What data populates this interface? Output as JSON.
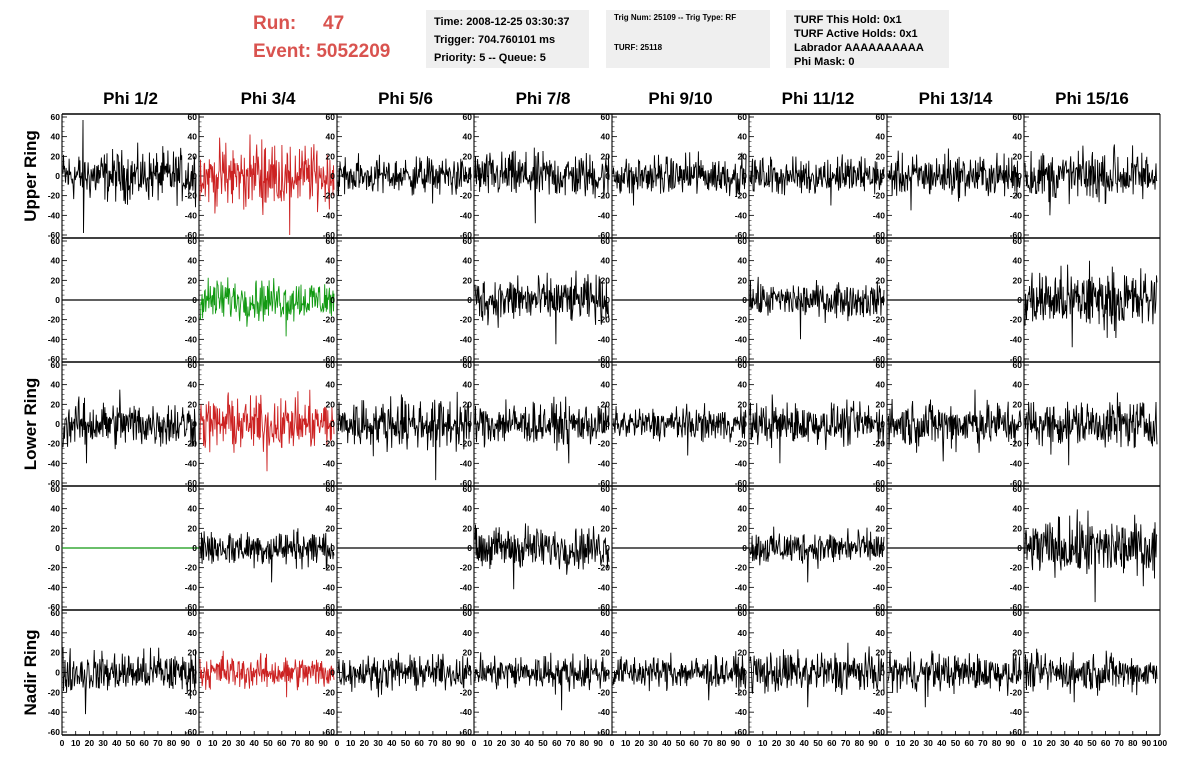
{
  "header": {
    "run_label": "Run:",
    "run_value": "47",
    "event_label": "Event:",
    "event_value": "5052209",
    "time_line": "Time: 2008-12-25 03:30:37",
    "trigger_line": "Trigger: 704.760101 ms",
    "priority_line": "Priority: 5 -- Queue: 5",
    "trig_line": "Trig Num: 25109 -- Trig Type: RF",
    "turf_line": "TURF: 25118",
    "turf_hold_line": "TURF This Hold: 0x1",
    "turf_active_line": "TURF Active Holds: 0x1",
    "labrador_line": "Labrador AAAAAAAAAA",
    "phi_mask_line": "Phi Mask: 0"
  },
  "colors": {
    "trace_default": "#000000",
    "trace_red": "#cc2222",
    "trace_green": "#119911",
    "run_text": "#d9534f",
    "info_bg": "#efefef"
  },
  "chart_data": {
    "type": "line",
    "columns": [
      "Phi 1/2",
      "Phi 3/4",
      "Phi 5/6",
      "Phi 7/8",
      "Phi 9/10",
      "Phi 11/12",
      "Phi 13/14",
      "Phi 15/16"
    ],
    "rows": [
      "Upper Ring",
      "",
      "Lower Ring",
      "",
      "Nadir Ring"
    ],
    "ylim": [
      -60,
      60
    ],
    "xlim": [
      0,
      100
    ],
    "y_ticks": [
      "60",
      "40",
      "20",
      "0",
      "-20",
      "-40",
      "-60"
    ],
    "x_tick_labels": [
      "0",
      "10",
      "20",
      "30",
      "40",
      "50",
      "60",
      "70",
      "80",
      "90",
      "100"
    ],
    "traces": [
      [
        {
          "color": "black",
          "amp": 22,
          "max": 57,
          "min": -58
        },
        {
          "color": "red",
          "amp": 28,
          "max": 32,
          "min": -60
        },
        {
          "color": "black",
          "amp": 16,
          "max": 20,
          "min": -28
        },
        {
          "color": "black",
          "amp": 20,
          "max": 22,
          "min": -48
        },
        {
          "color": "black",
          "amp": 17,
          "max": 25,
          "min": -30
        },
        {
          "color": "black",
          "amp": 16,
          "max": 22,
          "min": -30
        },
        {
          "color": "black",
          "amp": 18,
          "max": 28,
          "min": -35
        },
        {
          "color": "black",
          "amp": 22,
          "max": 32,
          "min": -40
        }
      ],
      [
        {
          "color": "flat",
          "amp": 0,
          "max": 0,
          "min": 0
        },
        {
          "color": "green",
          "amp": 18,
          "max": 23,
          "min": -37
        },
        {
          "color": "flat",
          "amp": 0,
          "max": 0,
          "min": 0
        },
        {
          "color": "black",
          "amp": 20,
          "max": 25,
          "min": -45
        },
        {
          "color": "flat",
          "amp": 0,
          "max": 0,
          "min": 0
        },
        {
          "color": "black",
          "amp": 15,
          "max": 18,
          "min": -40
        },
        {
          "color": "flat",
          "amp": 0,
          "max": 0,
          "min": 0
        },
        {
          "color": "black",
          "amp": 26,
          "max": 40,
          "min": -48
        }
      ],
      [
        {
          "color": "black",
          "amp": 20,
          "max": 35,
          "min": -40
        },
        {
          "color": "red",
          "amp": 22,
          "max": 32,
          "min": -48
        },
        {
          "color": "black",
          "amp": 22,
          "max": 30,
          "min": -57
        },
        {
          "color": "black",
          "amp": 18,
          "max": 25,
          "min": -40
        },
        {
          "color": "black",
          "amp": 14,
          "max": 18,
          "min": -32
        },
        {
          "color": "black",
          "amp": 18,
          "max": 30,
          "min": -40
        },
        {
          "color": "black",
          "amp": 20,
          "max": 35,
          "min": -38
        },
        {
          "color": "black",
          "amp": 20,
          "max": 32,
          "min": -42
        }
      ],
      [
        {
          "color": "greenflat",
          "amp": 0,
          "max": 0,
          "min": 0
        },
        {
          "color": "black",
          "amp": 16,
          "max": 20,
          "min": -35
        },
        {
          "color": "flat",
          "amp": 0,
          "max": 0,
          "min": 0
        },
        {
          "color": "black",
          "amp": 18,
          "max": 25,
          "min": -42
        },
        {
          "color": "flat",
          "amp": 0,
          "max": 0,
          "min": 0
        },
        {
          "color": "black",
          "amp": 15,
          "max": 20,
          "min": -35
        },
        {
          "color": "flat",
          "amp": 0,
          "max": 0,
          "min": 0
        },
        {
          "color": "black",
          "amp": 25,
          "max": 38,
          "min": -55
        }
      ],
      [
        {
          "color": "black",
          "amp": 18,
          "max": 25,
          "min": -42
        },
        {
          "color": "red",
          "amp": 14,
          "max": 22,
          "min": -25
        },
        {
          "color": "black",
          "amp": 14,
          "max": 20,
          "min": -25
        },
        {
          "color": "black",
          "amp": 15,
          "max": 20,
          "min": -38
        },
        {
          "color": "black",
          "amp": 14,
          "max": 20,
          "min": -28
        },
        {
          "color": "black",
          "amp": 18,
          "max": 30,
          "min": -35
        },
        {
          "color": "black",
          "amp": 16,
          "max": 22,
          "min": -35
        },
        {
          "color": "black",
          "amp": 16,
          "max": 22,
          "min": -30
        }
      ]
    ]
  }
}
